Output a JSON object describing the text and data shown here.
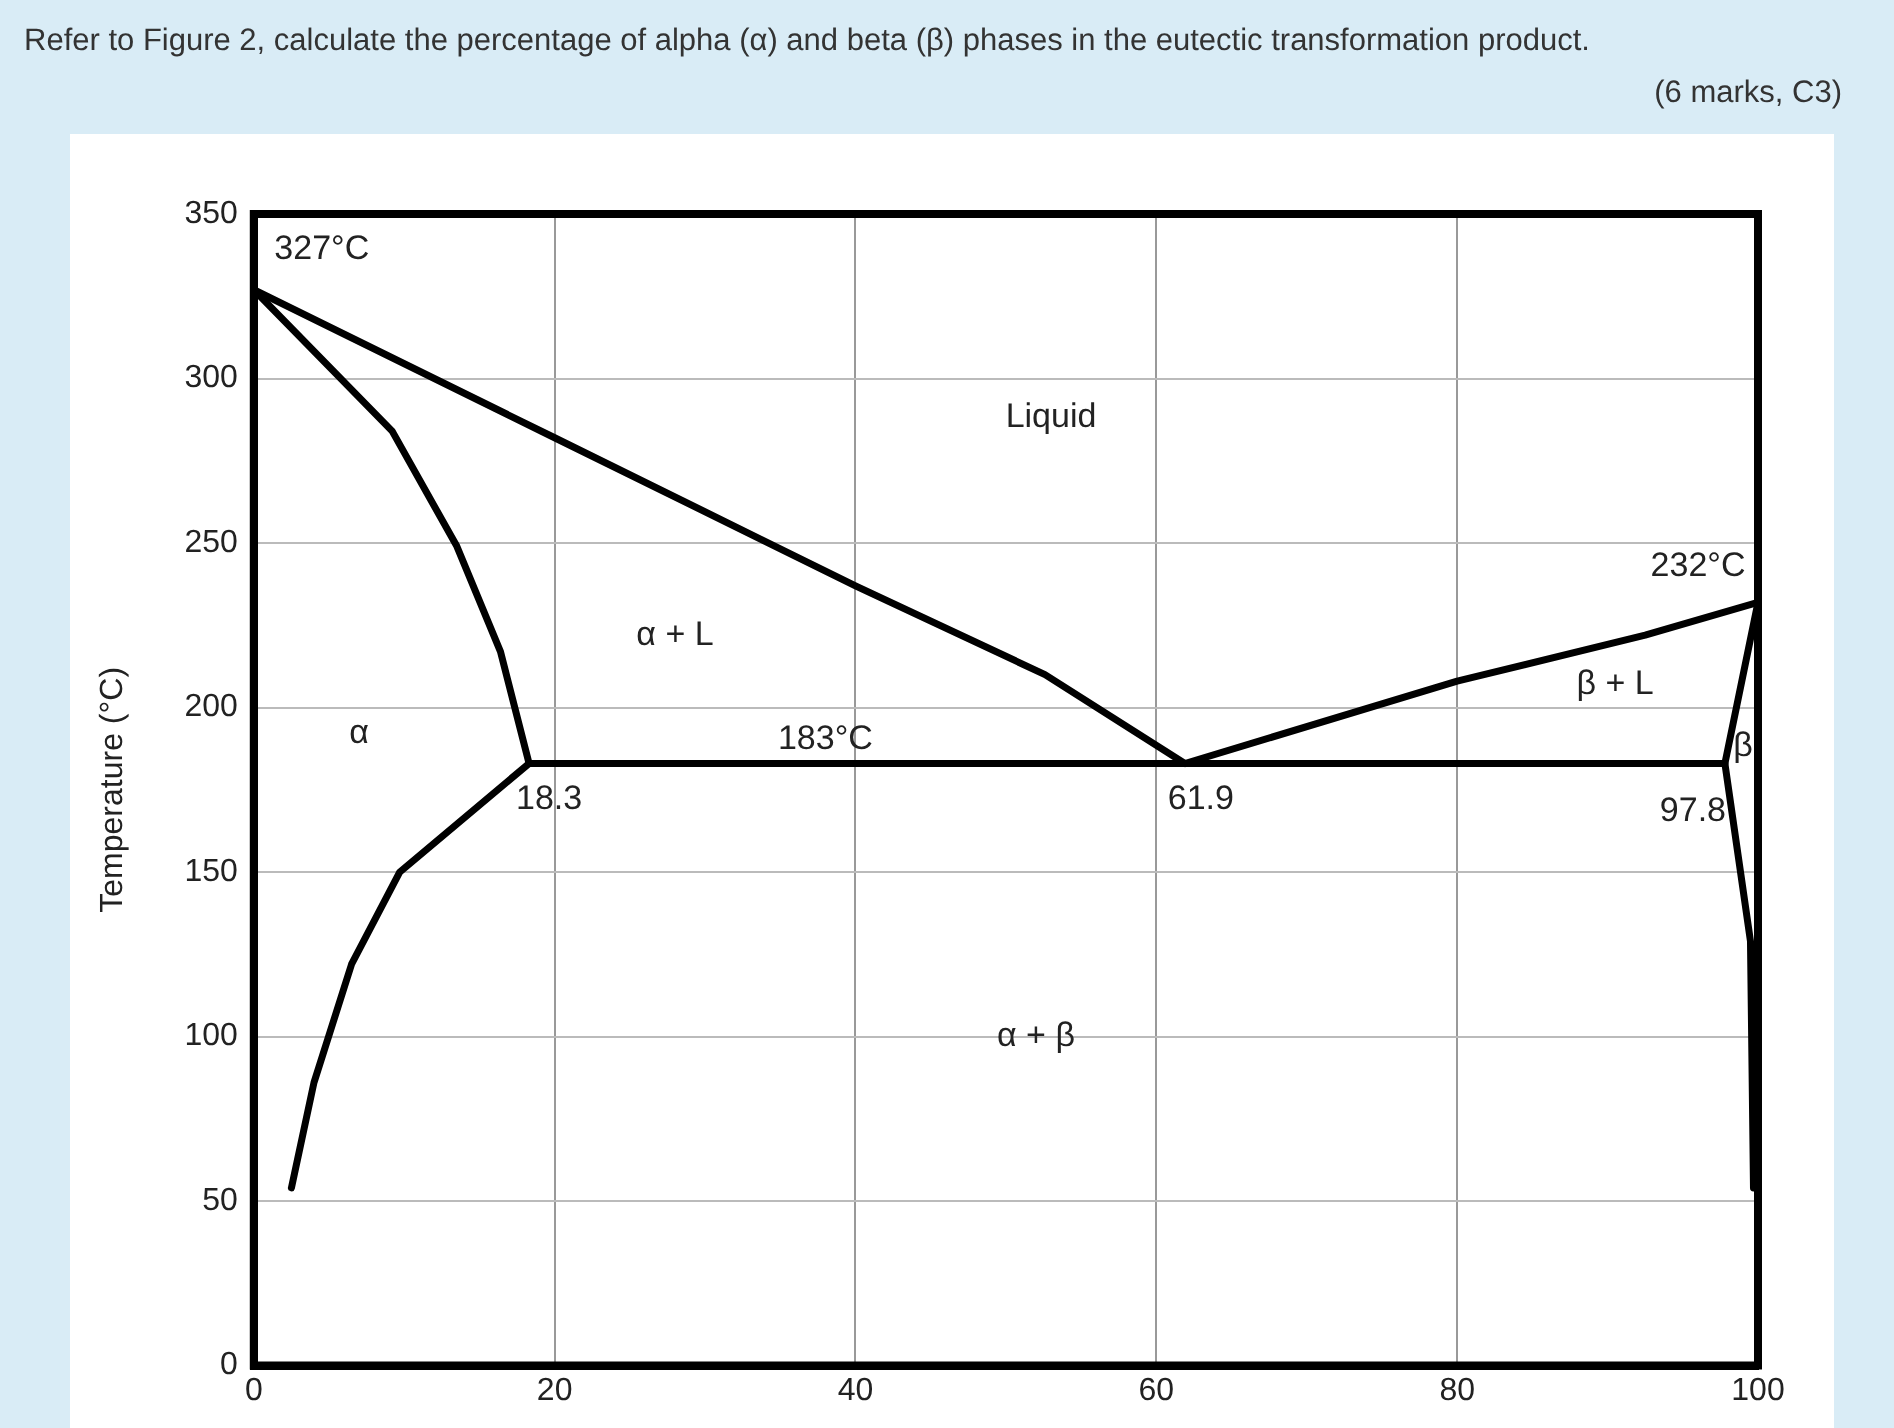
{
  "chart_data": {
    "type": "line",
    "title": "Refer to Figure 2, calculate the percentage of alpha (α) and beta (β) phases in the eutectic transformation product.",
    "subtitle": "(6 marks, C3)",
    "ylabel": "Temperature (°C)",
    "xlim": [
      0,
      100
    ],
    "xticks": [
      0,
      20,
      40,
      60,
      80,
      100
    ],
    "ylim": [
      0,
      350
    ],
    "yticks": [
      0,
      50,
      100,
      150,
      200,
      250,
      300,
      350
    ],
    "grid": true,
    "legend": false,
    "marker": "none",
    "line_style": "solid",
    "series": [
      {
        "color": "#000000",
        "x": [
          0,
          20,
          40,
          52.6,
          61.9
        ],
        "values": [
          327,
          282,
          237,
          210,
          183
        ]
      },
      {
        "color": "#000000",
        "x": [
          61.9,
          80,
          92.5,
          100
        ],
        "values": [
          183,
          208,
          222,
          232
        ]
      },
      {
        "color": "#000000",
        "x": [
          0,
          9.2,
          13.5,
          16.4,
          18.3,
          9.7,
          6.5,
          4,
          2.5
        ],
        "values": [
          327,
          284,
          249,
          217,
          183,
          150,
          122,
          86,
          54
        ]
      },
      {
        "color": "#000000",
        "x": [
          18.3,
          97.8
        ],
        "values": [
          183,
          183
        ]
      },
      {
        "color": "#000000",
        "x": [
          100,
          97.8,
          99.5,
          99.7
        ],
        "values": [
          232,
          183,
          129,
          54
        ]
      }
    ],
    "annotations": [
      {
        "text": "327°C",
        "x": 0,
        "y": 327
      },
      {
        "text": "232°C",
        "x": 100,
        "y": 232
      },
      {
        "text": "183°C",
        "x": 38,
        "y": 183
      },
      {
        "text": "18.3",
        "x": 18.3,
        "y": 183
      },
      {
        "text": "61.9",
        "x": 61.9,
        "y": 183
      },
      {
        "text": "97.8",
        "x": 97.8,
        "y": 183
      },
      "Liquid",
      "α + L",
      "β + L",
      "α",
      "β",
      "α + β"
    ]
  }
}
